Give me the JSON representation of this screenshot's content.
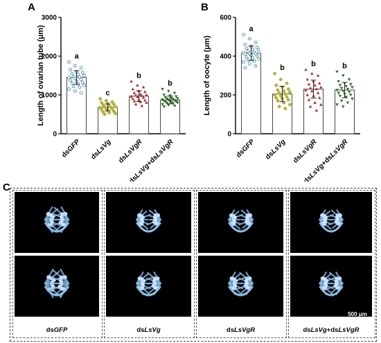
{
  "panels": {
    "a": "A",
    "b": "B",
    "c": "C"
  },
  "chart_data": [
    {
      "type": "bar",
      "ylabel": "Length of ovarian tube (μm)",
      "ylim": [
        0,
        3000
      ],
      "yticks": [
        "0",
        "1000",
        "2000",
        "3000"
      ],
      "categories": [
        {
          "plain": "ds",
          "italic": "GFP"
        },
        {
          "plain": "ds",
          "italic": "LsVg"
        },
        {
          "plain": "ds",
          "italic": "LsVgR"
        },
        {
          "plain": "ds",
          "italic": "LsVg",
          "plain2": "+ds",
          "italic2": "LsVgR"
        }
      ],
      "values": [
        1450,
        680,
        970,
        870
      ],
      "letters": [
        "a",
        "c",
        "b",
        "b"
      ],
      "point_colors": [
        "#4d8fa8",
        "#b5b23c",
        "#b33030",
        "#2f6d2c"
      ],
      "marker": [
        "circle",
        "circle",
        "triangle",
        "triangle-down"
      ],
      "points": [
        [
          1850,
          1750,
          1700,
          1650,
          1600,
          1580,
          1550,
          1520,
          1500,
          1480,
          1460,
          1450,
          1430,
          1400,
          1380,
          1350,
          1320,
          1300,
          1280,
          1250,
          1220,
          1200,
          1150,
          1100,
          1050
        ],
        [
          900,
          850,
          820,
          800,
          780,
          760,
          740,
          720,
          700,
          690,
          680,
          670,
          650,
          640,
          620,
          600,
          580,
          560,
          540,
          520,
          500
        ],
        [
          1350,
          1250,
          1200,
          1150,
          1100,
          1080,
          1050,
          1020,
          1000,
          990,
          980,
          960,
          950,
          930,
          900,
          880,
          860,
          840,
          820,
          800,
          760,
          720
        ],
        [
          1150,
          1100,
          1050,
          1000,
          980,
          960,
          940,
          920,
          910,
          900,
          890,
          880,
          870,
          860,
          850,
          840,
          830,
          820,
          810,
          800,
          790,
          780,
          760,
          740,
          720,
          700
        ]
      ]
    },
    {
      "type": "bar",
      "ylabel": "Length of oocyte (μm)",
      "ylim": [
        0,
        600
      ],
      "yticks": [
        "0",
        "200",
        "400",
        "600"
      ],
      "categories": [
        {
          "plain": "ds",
          "italic": "GFP"
        },
        {
          "plain": "ds",
          "italic": "LsVg"
        },
        {
          "plain": "ds",
          "italic": "LsVgR"
        },
        {
          "plain": "ds",
          "italic": "LsVg",
          "plain2": "+ds",
          "italic2": "LsVgR"
        }
      ],
      "values": [
        415,
        205,
        230,
        225
      ],
      "letters": [
        "a",
        "b",
        "b",
        "b"
      ],
      "point_colors": [
        "#4d8fa8",
        "#b5b23c",
        "#b33030",
        "#2f6d2c"
      ],
      "marker": [
        "circle",
        "circle",
        "triangle",
        "triangle-down"
      ],
      "points": [
        [
          510,
          490,
          470,
          460,
          450,
          445,
          440,
          435,
          430,
          425,
          420,
          418,
          415,
          412,
          410,
          405,
          400,
          395,
          390,
          385,
          380,
          375,
          370,
          360,
          350,
          340
        ],
        [
          310,
          280,
          260,
          250,
          240,
          230,
          225,
          220,
          215,
          210,
          205,
          200,
          195,
          190,
          185,
          180,
          175,
          170,
          160,
          150,
          140,
          130
        ],
        [
          330,
          310,
          300,
          280,
          270,
          260,
          255,
          250,
          240,
          235,
          230,
          225,
          220,
          210,
          200,
          195,
          185,
          175,
          160,
          150,
          140,
          120
        ],
        [
          320,
          300,
          280,
          270,
          260,
          255,
          250,
          245,
          240,
          235,
          230,
          225,
          220,
          215,
          210,
          205,
          200,
          195,
          190,
          180,
          170,
          160,
          150,
          140
        ]
      ]
    }
  ],
  "photos": {
    "captions": [
      {
        "plain": "ds",
        "italic": "GFP"
      },
      {
        "plain": "ds",
        "italic": "LsVg"
      },
      {
        "plain": "ds",
        "italic": "LsVgR"
      },
      {
        "plain": "ds",
        "italic": "LsVg",
        "plain2": "+ds",
        "italic2": "LsVgR"
      }
    ],
    "scale_bar": "500 μm"
  }
}
